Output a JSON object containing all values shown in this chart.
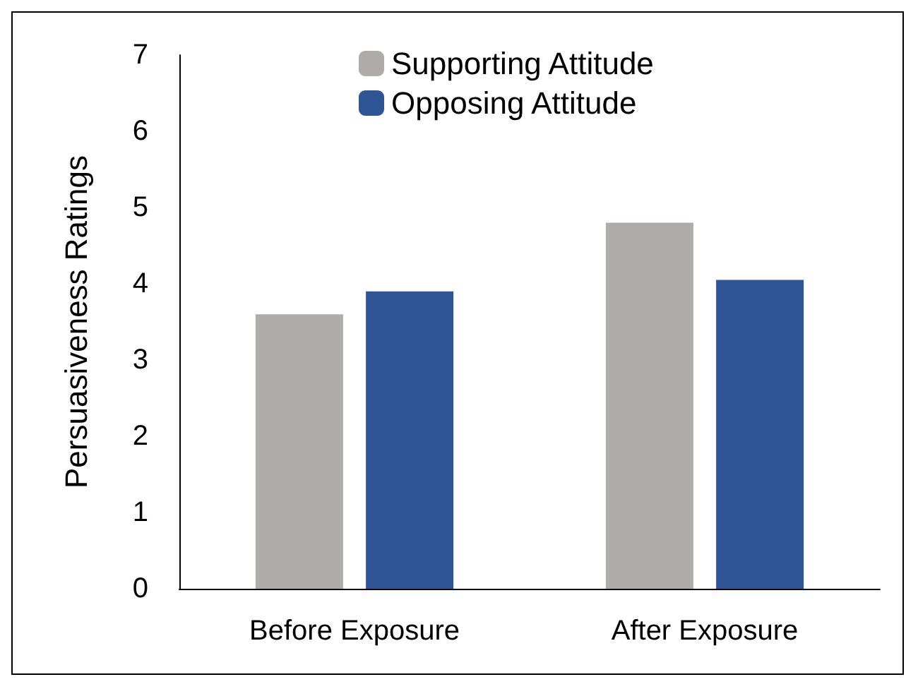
{
  "chart_data": {
    "type": "bar",
    "ylabel": "Persuasiveness Ratings",
    "categories": [
      "Before Exposure",
      "After Exposure"
    ],
    "series": [
      {
        "name": "Supporting Attitude",
        "color": "#afabab",
        "values": [
          3.6,
          4.8
        ]
      },
      {
        "name": "Opposing Attitude",
        "color": "#2f5597",
        "values": [
          3.9,
          4.05
        ]
      }
    ],
    "ylim": [
      0,
      7
    ],
    "yticks": [
      0,
      1,
      2,
      3,
      4,
      5,
      6,
      7
    ],
    "grid": false,
    "legend": "top"
  }
}
